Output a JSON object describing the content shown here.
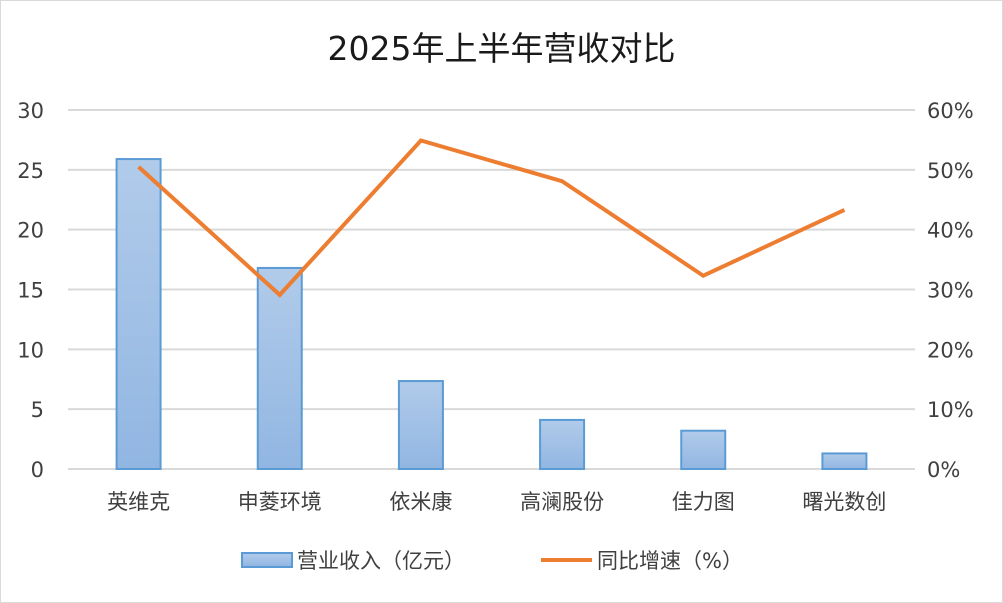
{
  "chart_data": {
    "type": "bar+line",
    "title": "2025年上半年营收对比",
    "categories": [
      "英维克",
      "申菱环境",
      "依米康",
      "高澜股份",
      "佳力图",
      "曙光数创"
    ],
    "series": [
      {
        "name": "营业收入（亿元）",
        "type": "bar",
        "axis": "left",
        "color": "#5b9bd5",
        "values": [
          25.9,
          16.8,
          7.35,
          4.1,
          3.2,
          1.3
        ]
      },
      {
        "name": "同比增速（%）",
        "type": "line",
        "axis": "right",
        "color": "#ed7d31",
        "values": [
          50.5,
          29.1,
          54.9,
          48.1,
          32.3,
          43.3
        ]
      }
    ],
    "left_axis": {
      "ticks": [
        "0",
        "5",
        "10",
        "15",
        "20",
        "25",
        "30"
      ],
      "ylim": [
        0,
        30
      ]
    },
    "right_axis": {
      "ticks": [
        "0%",
        "10%",
        "20%",
        "30%",
        "40%",
        "50%",
        "60%"
      ],
      "ylim": [
        0,
        60
      ]
    },
    "xlabel": "",
    "ylabel": "",
    "grid": true,
    "legend_position": "bottom"
  },
  "legend": {
    "bar_label": "营业收入（亿元）",
    "line_label": "同比增速（%）"
  }
}
